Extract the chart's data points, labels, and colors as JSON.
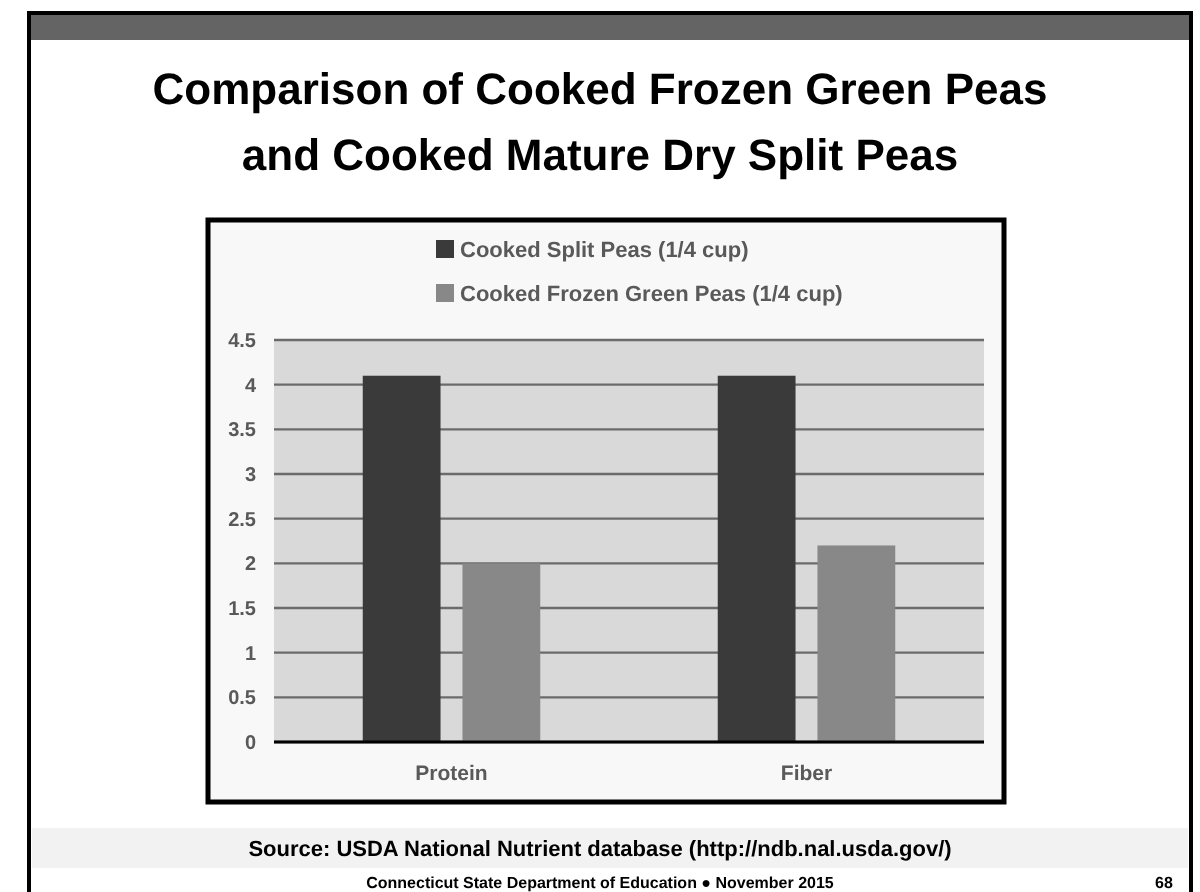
{
  "chart_data": {
    "type": "bar",
    "title": "Comparison of Cooked Frozen Green Peas and Cooked Mature Dry Split Peas",
    "categories": [
      "Protein",
      "Fiber"
    ],
    "series": [
      {
        "name": "Cooked Split Peas (1/4 cup)",
        "color": "#3a3a3a",
        "values": [
          4.1,
          4.1
        ]
      },
      {
        "name": "Cooked Frozen Green Peas (1/4 cup)",
        "color": "#888888",
        "values": [
          2.0,
          2.2
        ]
      }
    ],
    "ylim": [
      0,
      4.5
    ],
    "yticks": [
      0,
      0.5,
      1,
      1.5,
      2,
      2.5,
      3,
      3.5,
      4,
      4.5
    ],
    "grid": "y",
    "legend": "top",
    "annotations": [
      "Source: USDA National Nutrient database (http://ndb.nal.usda.gov/)",
      "Connecticut State Department of Education ● November 2015",
      "68"
    ]
  }
}
